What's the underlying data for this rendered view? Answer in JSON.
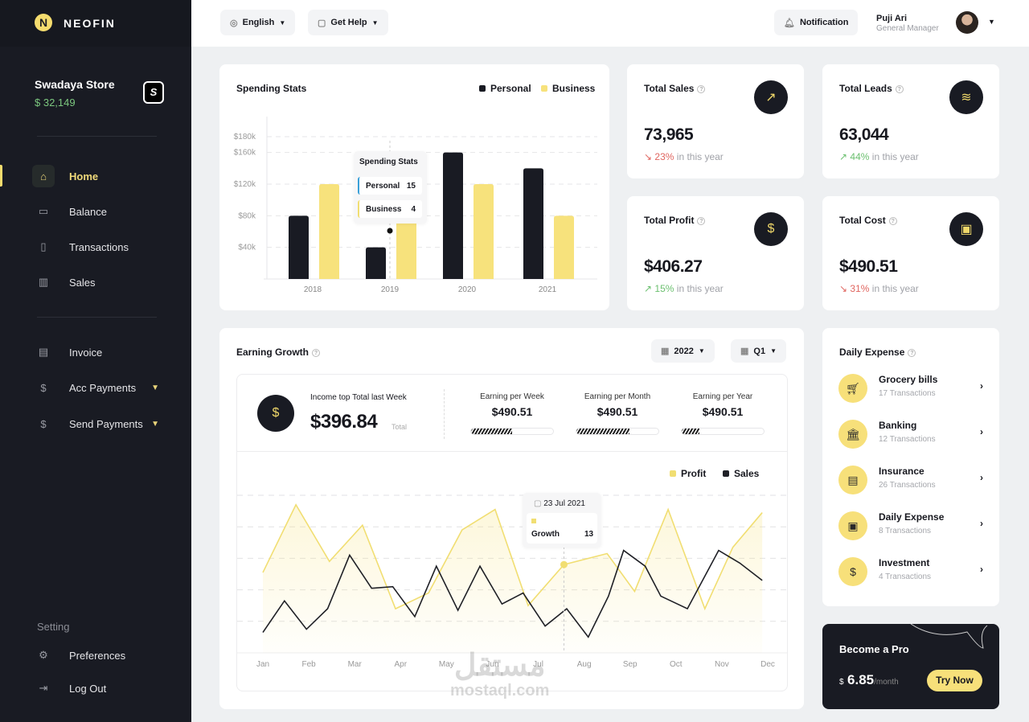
{
  "brand": {
    "name": "NEOFIN",
    "logo_letter": "N"
  },
  "store": {
    "name": "Swadaya Store",
    "balance": "$ 32,149",
    "badge": "S"
  },
  "sidebar": {
    "main": [
      {
        "label": "Home",
        "icon": "home-icon",
        "active": true
      },
      {
        "label": "Balance",
        "icon": "wallet-icon"
      },
      {
        "label": "Transactions",
        "icon": "receipt-icon"
      },
      {
        "label": "Sales",
        "icon": "bar-chart-icon"
      }
    ],
    "payments": [
      {
        "label": "Invoice",
        "icon": "invoice-icon"
      },
      {
        "label": "Acc Payments",
        "icon": "receive-money-icon",
        "expandable": true
      },
      {
        "label": "Send Payments",
        "icon": "send-money-icon",
        "expandable": true
      }
    ],
    "setting_label": "Setting",
    "settings": [
      {
        "label": "Preferences",
        "icon": "gear-icon"
      },
      {
        "label": "Log Out",
        "icon": "logout-icon"
      }
    ]
  },
  "topbar": {
    "language": "English",
    "help": "Get Help",
    "notification": "Notification",
    "user": {
      "name": "Puji Ari",
      "role": "General Manager"
    }
  },
  "colors": {
    "accent": "#f5dc6e",
    "dark": "#191b23",
    "up": "#6cc070",
    "down": "#e0655f"
  },
  "spending": {
    "title": "Spending Stats",
    "tooltip": {
      "title": "Spending Stats",
      "rows": [
        {
          "label": "Personal",
          "value": "15"
        },
        {
          "label": "Business",
          "value": "4"
        }
      ]
    }
  },
  "stats": [
    {
      "title": "Total Sales",
      "value": "73,965",
      "change": "23%",
      "trend": "down",
      "suffix": "in this year",
      "icon": "trend-up-icon"
    },
    {
      "title": "Total Leads",
      "value": "63,044",
      "change": "44%",
      "trend": "up",
      "suffix": "in this year",
      "icon": "stack-icon"
    },
    {
      "title": "Total Profit",
      "value": "$406.27",
      "change": "15%",
      "trend": "up",
      "suffix": "in this year",
      "icon": "hand-dollar-icon"
    },
    {
      "title": "Total Cost",
      "value": "$490.51",
      "change": "31%",
      "trend": "down",
      "suffix": "in this year",
      "icon": "atm-icon"
    }
  ],
  "earning": {
    "title": "Earning Growth",
    "year": "2022",
    "quarter": "Q1",
    "income_label": "Income top Total last Week",
    "income_value": "$396.84",
    "income_suffix": "Total",
    "periods": [
      {
        "label": "Earning per Week",
        "value": "$490.51",
        "progress": 0.5
      },
      {
        "label": "Earning per Month",
        "value": "$490.51",
        "progress": 0.65
      },
      {
        "label": "Earning per Year",
        "value": "$490.51",
        "progress": 0.22
      }
    ],
    "tooltip": {
      "date": "23 Jul 2021",
      "label": "Growth",
      "value": "13"
    }
  },
  "daily_expense": {
    "title": "Daily Expense",
    "items": [
      {
        "name": "Grocery bills",
        "count": "17 Transactions",
        "icon": "cart-icon"
      },
      {
        "name": "Banking",
        "count": "12 Transactions",
        "icon": "bank-icon"
      },
      {
        "name": "Insurance",
        "count": "26 Transactions",
        "icon": "receipt-icon"
      },
      {
        "name": "Daily Expense",
        "count": "8 Transactions",
        "icon": "wallet-icon"
      },
      {
        "name": "Investment",
        "count": "4 Transactions",
        "icon": "money-bag-icon"
      }
    ]
  },
  "pro": {
    "title": "Become a Pro",
    "currency": "$",
    "price": "6.85",
    "period": "/month",
    "cta": "Try Now"
  },
  "watermark": {
    "arabic": "مستقل",
    "latin": "mostaql.com"
  },
  "chart_data": [
    {
      "type": "bar",
      "title": "Spending Stats",
      "categories": [
        "2018",
        "2019",
        "2020",
        "2021"
      ],
      "series": [
        {
          "name": "Personal",
          "color": "#191b23",
          "values": [
            80,
            40,
            160,
            140
          ]
        },
        {
          "name": "Business",
          "color": "#f7e27c",
          "values": [
            120,
            80,
            120,
            80
          ]
        }
      ],
      "yticks": [
        "$40k",
        "$80k",
        "$120k",
        "$160k",
        "$180k"
      ],
      "ytick_values": [
        40,
        80,
        120,
        160,
        180
      ],
      "ylim": [
        0,
        180
      ],
      "legend": "top-right",
      "grid": true
    },
    {
      "type": "line",
      "title": "Earning Growth",
      "categories": [
        "Jan",
        "Feb",
        "Mar",
        "Apr",
        "May",
        "Jun",
        "Jul",
        "Aug",
        "Sep",
        "Oct",
        "Nov",
        "Dec"
      ],
      "ylim": [
        0,
        100
      ],
      "legend": "top-right",
      "grid": true,
      "series": [
        {
          "name": "Profit",
          "color": "#f1de72",
          "x": [
            0,
            0.72,
            1.45,
            2.17,
            2.89,
            3.61,
            4.34,
            5.06,
            5.78,
            6.56,
            7.5,
            8.1,
            8.83,
            9.63,
            10.24,
            10.88
          ],
          "y": [
            51,
            94,
            58,
            81,
            28,
            38,
            78,
            91,
            30,
            56,
            63,
            39,
            91,
            28,
            67,
            89
          ]
        },
        {
          "name": "Sales",
          "color": "#1f2026",
          "x": [
            0,
            0.47,
            0.95,
            1.41,
            1.89,
            2.37,
            2.83,
            3.31,
            3.78,
            4.25,
            4.73,
            5.21,
            5.67,
            6.15,
            6.62,
            7.09,
            7.53,
            7.86,
            8.33,
            8.67,
            9.25,
            9.93,
            10.39,
            10.88
          ],
          "y": [
            13,
            33,
            15,
            28,
            62,
            41,
            42,
            23,
            55,
            27,
            55,
            31,
            38,
            17,
            28,
            10,
            36,
            65,
            55,
            36,
            28,
            65,
            57,
            46
          ]
        }
      ],
      "highlight": {
        "x": 6.56,
        "series": "Profit"
      }
    }
  ]
}
